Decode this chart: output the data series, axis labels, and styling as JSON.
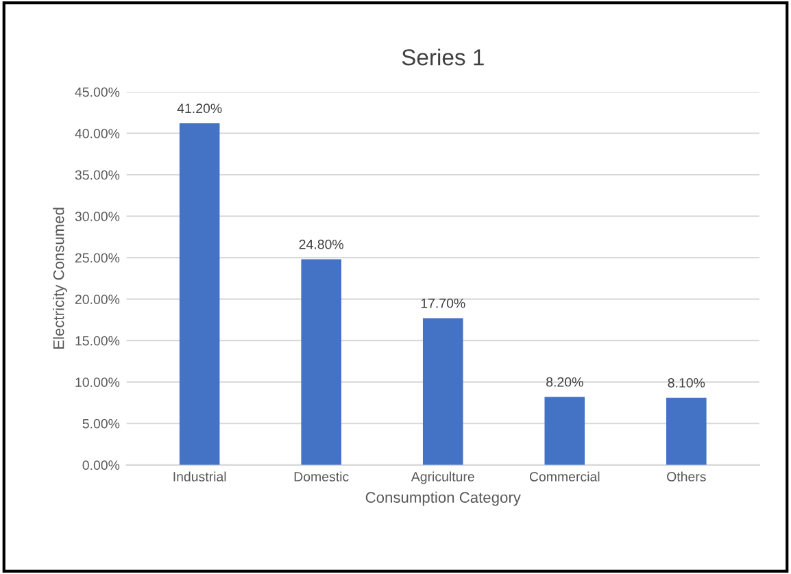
{
  "chart_data": {
    "type": "bar",
    "title": "Series 1",
    "xlabel": "Consumption Category",
    "ylabel": "Electricity Consumed",
    "categories": [
      "Industrial",
      "Domestic",
      "Agriculture",
      "Commercial",
      "Others"
    ],
    "values": [
      41.2,
      24.8,
      17.7,
      8.2,
      8.1
    ],
    "value_labels": [
      "41.20%",
      "24.80%",
      "17.70%",
      "8.20%",
      "8.10%"
    ],
    "color": "#4472c4",
    "ylim": [
      0,
      45
    ],
    "yticks": [
      {
        "value": 0,
        "label": "0.00%"
      },
      {
        "value": 5,
        "label": "5.00%"
      },
      {
        "value": 10,
        "label": "10.00%"
      },
      {
        "value": 15,
        "label": "15.00%"
      },
      {
        "value": 20,
        "label": "20.00%"
      },
      {
        "value": 25,
        "label": "25.00%"
      },
      {
        "value": 30,
        "label": "30.00%"
      },
      {
        "value": 35,
        "label": "35.00%"
      },
      {
        "value": 40,
        "label": "40.00%"
      },
      {
        "value": 45,
        "label": "45.00%"
      }
    ],
    "grid": "y",
    "legend": false
  }
}
